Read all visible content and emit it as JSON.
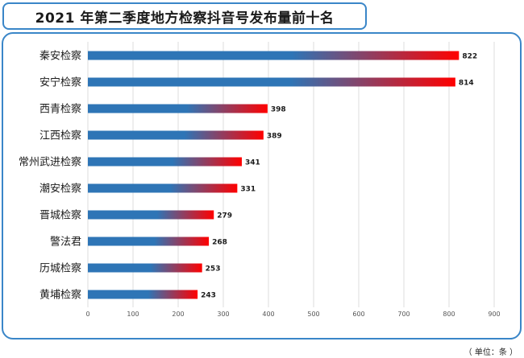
{
  "title": "2021 年第二季度地方检察抖音号发布量前十名",
  "unit_label": "（ 单位：条 ）",
  "colors": {
    "border": "#3a86c8",
    "bar_start": "#2e75b6",
    "bar_end": "#ff0000",
    "grid": "#dddddd"
  },
  "chart_data": {
    "type": "bar",
    "orientation": "horizontal",
    "title": "2021 年第二季度地方检察抖音号发布量前十名",
    "categories": [
      "秦安检察",
      "安宁检察",
      "西青检察",
      "江西检察",
      "常州武进检察",
      "潮安检察",
      "晋城检察",
      "警法君",
      "历城检察",
      "黄埔检察"
    ],
    "values": [
      822,
      814,
      398,
      389,
      341,
      331,
      279,
      268,
      253,
      243
    ],
    "xlim": [
      0,
      900
    ],
    "xticks": [
      0,
      100,
      200,
      300,
      400,
      500,
      600,
      700,
      800,
      900
    ],
    "grid": "vertical",
    "unit": "（ 单位：条 ）"
  }
}
